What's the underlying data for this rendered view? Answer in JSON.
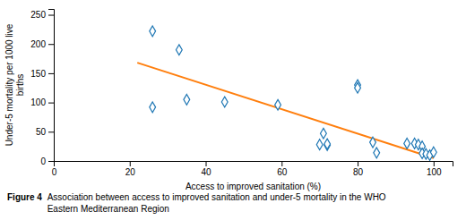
{
  "chart_data": {
    "type": "scatter",
    "xlabel": "Access to improved sanitation (%)",
    "ylabel": "Under-5 mortality per 1000 live\nbirths",
    "caption_bold": "Figure 4 ",
    "caption_normal": "Association between access to improved sanitation and under-5 mortality in the WHO\nEastern Mediterranean Region",
    "series": [
      {
        "type": "scatter",
        "marker": "diamond",
        "x": [
          26,
          26,
          33,
          35,
          45,
          59,
          70,
          71,
          72,
          72,
          80,
          80,
          84,
          85,
          93,
          95,
          96,
          97,
          97,
          98,
          99,
          100
        ],
        "values": [
          222,
          92,
          190,
          105,
          101,
          96,
          28,
          47,
          27,
          29,
          130,
          125,
          32,
          14,
          30,
          30,
          28,
          25,
          13,
          12,
          10,
          15
        ]
      },
      {
        "type": "line",
        "x": [
          22,
          100
        ],
        "values": [
          168,
          5
        ]
      }
    ],
    "xlim": [
      0,
      105
    ],
    "ylim": [
      0,
      260
    ],
    "xticks": [
      0,
      20,
      40,
      60,
      80,
      100
    ],
    "yticks": [
      0,
      50,
      100,
      150,
      200,
      250
    ]
  }
}
